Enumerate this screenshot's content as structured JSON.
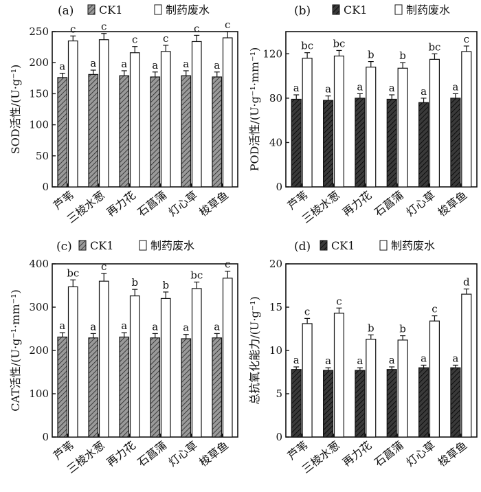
{
  "chart_data": [
    {
      "type": "bar",
      "panel_label": "(a)",
      "ylabel": "SOD活性/(U·g⁻¹)",
      "ylim": [
        0,
        250
      ],
      "yticks": [
        0,
        50,
        100,
        150,
        200,
        250
      ],
      "categories": [
        "芦苇",
        "三棱水葱",
        "再力花",
        "石菖蒲",
        "灯心草",
        "梭草鱼"
      ],
      "legend_position": "top",
      "series": [
        {
          "name": "CK1",
          "pattern": "hatch",
          "fill": "#8a8a8a",
          "values": [
            176,
            181,
            179,
            177,
            179,
            177
          ],
          "errors": [
            7,
            7,
            8,
            8,
            8,
            8
          ],
          "labels": [
            "a",
            "a",
            "a",
            "a",
            "a",
            "a"
          ]
        },
        {
          "name": "制药废水",
          "pattern": "solid",
          "fill": "#ffffff",
          "values": [
            235,
            237,
            216,
            218,
            234,
            240
          ],
          "errors": [
            8,
            10,
            10,
            10,
            10,
            10
          ],
          "labels": [
            "c",
            "c",
            "c",
            "c",
            "c",
            "c"
          ]
        }
      ]
    },
    {
      "type": "bar",
      "panel_label": "(b)",
      "ylabel": "POD活性/(U·g⁻¹·mm⁻¹)",
      "ylim": [
        0,
        140
      ],
      "yticks": [
        0,
        40,
        80,
        120
      ],
      "categories": [
        "芦苇",
        "三棱水葱",
        "再力花",
        "石菖蒲",
        "灯心草",
        "梭草鱼"
      ],
      "legend_position": "top",
      "series": [
        {
          "name": "CK1",
          "pattern": "hatch",
          "fill": "#333333",
          "values": [
            79,
            78,
            80,
            79,
            76,
            80
          ],
          "errors": [
            4,
            4,
            4,
            4,
            4,
            4
          ],
          "labels": [
            "a",
            "a",
            "a",
            "a",
            "a",
            "a"
          ]
        },
        {
          "name": "制药废水",
          "pattern": "solid",
          "fill": "#ffffff",
          "values": [
            116,
            118,
            108,
            107,
            115,
            122
          ],
          "errors": [
            5,
            5,
            5,
            5,
            5,
            5
          ],
          "labels": [
            "bc",
            "bc",
            "b",
            "b",
            "bc",
            "c"
          ]
        }
      ]
    },
    {
      "type": "bar",
      "panel_label": "(c)",
      "ylabel": "CAT活性/(U·g⁻¹·mm⁻¹)",
      "ylim": [
        0,
        400
      ],
      "yticks": [
        0,
        100,
        200,
        300,
        400
      ],
      "categories": [
        "芦苇",
        "三棱水葱",
        "再力花",
        "石菖蒲",
        "灯心草",
        "梭草鱼"
      ],
      "legend_position": "top",
      "series": [
        {
          "name": "CK1",
          "pattern": "hatch",
          "fill": "#8a8a8a",
          "values": [
            231,
            229,
            231,
            229,
            227,
            229
          ],
          "errors": [
            10,
            10,
            10,
            10,
            10,
            10
          ],
          "labels": [
            "a",
            "a",
            "a",
            "a",
            "a",
            "a"
          ]
        },
        {
          "name": "制药废水",
          "pattern": "solid",
          "fill": "#ffffff",
          "values": [
            347,
            360,
            326,
            320,
            343,
            367
          ],
          "errors": [
            16,
            18,
            15,
            15,
            15,
            16
          ],
          "labels": [
            "bc",
            "c",
            "b",
            "b",
            "bc",
            "c"
          ]
        }
      ]
    },
    {
      "type": "bar",
      "panel_label": "(d)",
      "ylabel": "总抗氧化能力/(U·g⁻¹)",
      "ylim": [
        0,
        20
      ],
      "yticks": [
        0,
        5,
        10,
        15,
        20
      ],
      "categories": [
        "芦苇",
        "三棱水葱",
        "再力花",
        "石菖蒲",
        "灯心草",
        "梭草鱼"
      ],
      "legend_position": "top",
      "series": [
        {
          "name": "CK1",
          "pattern": "hatch",
          "fill": "#333333",
          "values": [
            7.8,
            7.7,
            7.7,
            7.8,
            8.0,
            8.0
          ],
          "errors": [
            0.3,
            0.3,
            0.3,
            0.3,
            0.3,
            0.3
          ],
          "labels": [
            "a",
            "a",
            "a",
            "a",
            "a",
            "a"
          ]
        },
        {
          "name": "制药废水",
          "pattern": "solid",
          "fill": "#ffffff",
          "values": [
            13.1,
            14.3,
            11.3,
            11.2,
            13.4,
            16.5
          ],
          "errors": [
            0.6,
            0.6,
            0.5,
            0.5,
            0.6,
            0.6
          ],
          "labels": [
            "c",
            "c",
            "b",
            "b",
            "c",
            "d"
          ]
        }
      ]
    }
  ]
}
